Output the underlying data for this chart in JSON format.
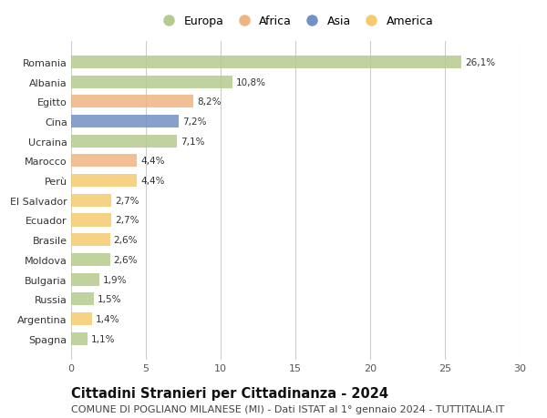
{
  "categories": [
    "Romania",
    "Albania",
    "Egitto",
    "Cina",
    "Ucraina",
    "Marocco",
    "Perù",
    "El Salvador",
    "Ecuador",
    "Brasile",
    "Moldova",
    "Bulgaria",
    "Russia",
    "Argentina",
    "Spagna"
  ],
  "values": [
    26.1,
    10.8,
    8.2,
    7.2,
    7.1,
    4.4,
    4.4,
    2.7,
    2.7,
    2.6,
    2.6,
    1.9,
    1.5,
    1.4,
    1.1
  ],
  "labels": [
    "26,1%",
    "10,8%",
    "8,2%",
    "7,2%",
    "7,1%",
    "4,4%",
    "4,4%",
    "2,7%",
    "2,7%",
    "2,6%",
    "2,6%",
    "1,9%",
    "1,5%",
    "1,4%",
    "1,1%"
  ],
  "continents": [
    "Europa",
    "Europa",
    "Africa",
    "Asia",
    "Europa",
    "Africa",
    "America",
    "America",
    "America",
    "America",
    "Europa",
    "Europa",
    "Europa",
    "America",
    "Europa"
  ],
  "continent_colors": {
    "Europa": "#b5cc8e",
    "Africa": "#f0b482",
    "Asia": "#7391c4",
    "America": "#f5cb6e"
  },
  "legend_order": [
    "Europa",
    "Africa",
    "Asia",
    "America"
  ],
  "title": "Cittadini Stranieri per Cittadinanza - 2024",
  "subtitle": "COMUNE DI POGLIANO MILANESE (MI) - Dati ISTAT al 1° gennaio 2024 - TUTTITALIA.IT",
  "xlim": [
    0,
    30
  ],
  "xticks": [
    0,
    5,
    10,
    15,
    20,
    25,
    30
  ],
  "background_color": "#ffffff",
  "grid_color": "#cccccc",
  "bar_height": 0.65,
  "title_fontsize": 10.5,
  "subtitle_fontsize": 8,
  "label_fontsize": 7.5,
  "tick_fontsize": 8,
  "legend_fontsize": 9
}
